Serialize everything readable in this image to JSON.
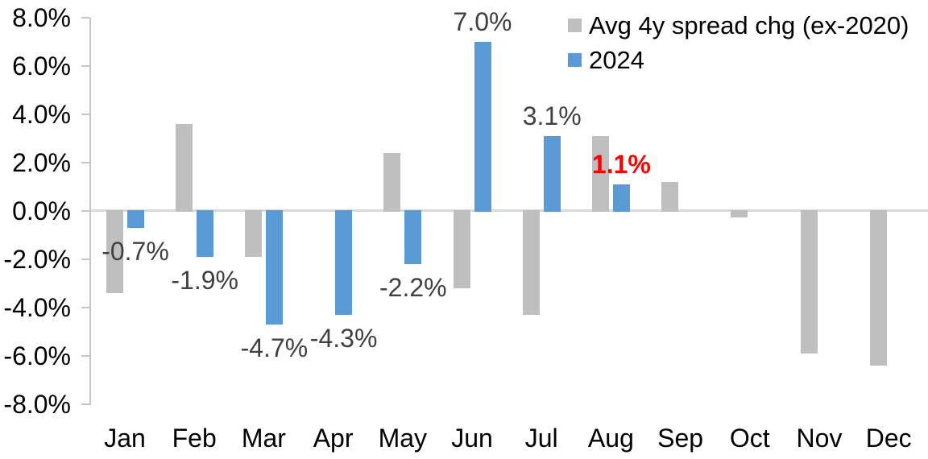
{
  "chart_data": {
    "type": "bar",
    "title": "",
    "categories": [
      "Jan",
      "Feb",
      "Mar",
      "Apr",
      "May",
      "Jun",
      "Jul",
      "Aug",
      "Sep",
      "Oct",
      "Nov",
      "Dec"
    ],
    "series": [
      {
        "name": "Avg 4y spread chg (ex-2020)",
        "color": "#BFBFBF",
        "values": [
          -3.4,
          3.6,
          -1.9,
          0,
          2.4,
          -3.2,
          -4.3,
          3.1,
          1.2,
          -0.25,
          -5.9,
          -6.4
        ]
      },
      {
        "name": "2024",
        "color": "#5B9BD5",
        "values": [
          -0.7,
          -1.9,
          -4.7,
          -4.3,
          -2.2,
          7.0,
          3.1,
          1.1,
          null,
          null,
          null,
          null
        ]
      }
    ],
    "data_labels": [
      {
        "category": "Jan",
        "text": "-0.7%",
        "color": "#404040",
        "bold": false
      },
      {
        "category": "Feb",
        "text": "-1.9%",
        "color": "#404040",
        "bold": false
      },
      {
        "category": "Mar",
        "text": "-4.7%",
        "color": "#404040",
        "bold": false
      },
      {
        "category": "Apr",
        "text": "-4.3%",
        "color": "#404040",
        "bold": false
      },
      {
        "category": "May",
        "text": "-2.2%",
        "color": "#404040",
        "bold": false
      },
      {
        "category": "Jun",
        "text": "7.0%",
        "color": "#404040",
        "bold": false
      },
      {
        "category": "Jul",
        "text": "3.1%",
        "color": "#404040",
        "bold": false
      },
      {
        "category": "Aug",
        "text": "1.1%",
        "color": "#FF0000",
        "bold": true
      }
    ],
    "y_axis": {
      "min": -8,
      "max": 8,
      "step": 2,
      "tick_labels": [
        "8.0%",
        "6.0%",
        "4.0%",
        "2.0%",
        "0.0%",
        "-2.0%",
        "-4.0%",
        "-6.0%",
        "-8.0%"
      ]
    },
    "legend": {
      "position": "top-right",
      "entries": [
        {
          "label": "Avg 4y spread chg (ex-2020)",
          "color": "#BFBFBF"
        },
        {
          "label": "2024",
          "color": "#5B9BD5"
        }
      ]
    },
    "grid": false,
    "axis_colors": {
      "axis_line": "#C6C6C6",
      "zero_line": "#D9D9D9",
      "tick_text": "#000000"
    }
  }
}
